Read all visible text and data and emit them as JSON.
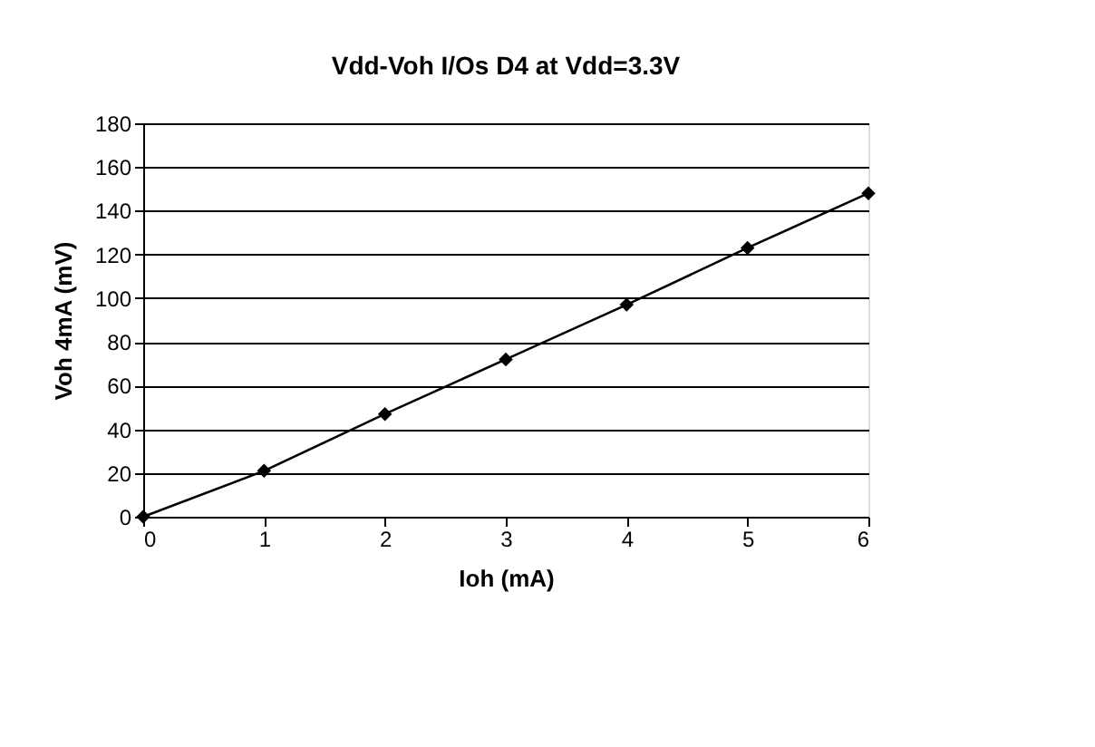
{
  "chart_data": {
    "type": "line",
    "title": "Vdd-Voh I/Os D4 at Vdd=3.3V",
    "xlabel": "Ioh (mA)",
    "ylabel": "Voh 4mA (mV)",
    "x": [
      0,
      1,
      2,
      3,
      4,
      5,
      6
    ],
    "series": [
      {
        "color": "#000000",
        "values": [
          0,
          21,
          47,
          72,
          97,
          123,
          148
        ]
      }
    ],
    "xlim": [
      0,
      6
    ],
    "xticks": [
      0,
      1,
      2,
      3,
      4,
      5,
      6
    ],
    "ylim": [
      0,
      180
    ],
    "yticks": [
      0,
      20,
      40,
      60,
      80,
      100,
      120,
      140,
      160,
      180
    ],
    "grid": "y",
    "marker": "diamond",
    "line_style": "solid"
  }
}
